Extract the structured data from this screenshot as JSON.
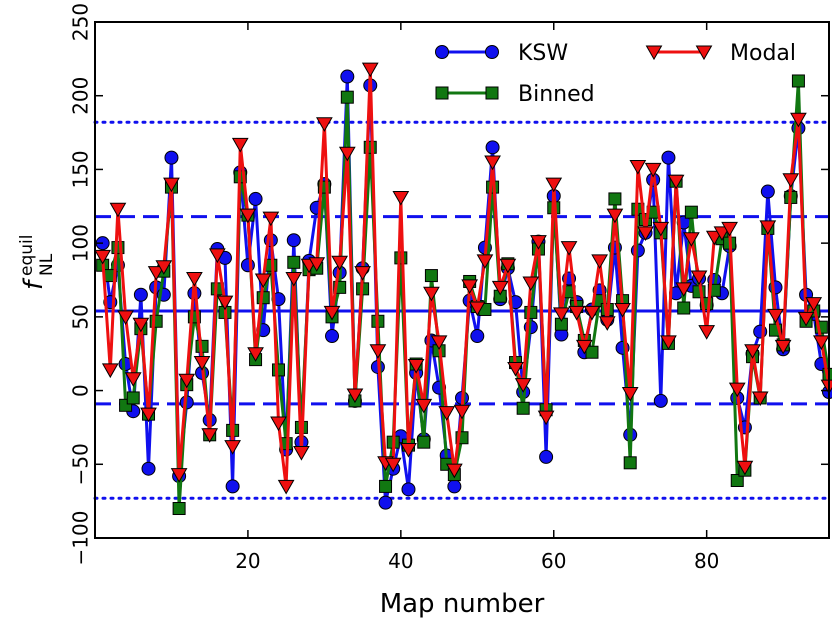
{
  "chart_data": {
    "type": "line",
    "xlabel": "Map number",
    "ylabel_main": "f",
    "ylabel_sup": "equil",
    "ylabel_sub": "NL",
    "xlim": [
      0,
      96
    ],
    "ylim": [
      -100,
      250
    ],
    "xticks": [
      20,
      40,
      60,
      80
    ],
    "yticks": [
      -100,
      -50,
      0,
      50,
      100,
      150,
      200,
      250
    ],
    "ytick_labels": [
      "−100",
      "−50",
      "0",
      "50",
      "100",
      "150",
      "200",
      "250"
    ],
    "hlines": [
      {
        "name": "mean",
        "y": 54,
        "style": "solid"
      },
      {
        "name": "plus-1sigma",
        "y": 118,
        "style": "dashed"
      },
      {
        "name": "minus-1sigma",
        "y": -9,
        "style": "dashed"
      },
      {
        "name": "plus-2sigma",
        "y": 182,
        "style": "dotted"
      },
      {
        "name": "minus-2sigma",
        "y": -73,
        "style": "dotted"
      }
    ],
    "legend": {
      "position": "top-right",
      "entries": [
        "KSW",
        "Binned",
        "Modal"
      ]
    },
    "series": [
      {
        "name": "KSW",
        "color": "#1010ee",
        "marker": "circle",
        "x": [
          1,
          2,
          3,
          4,
          5,
          6,
          7,
          8,
          9,
          10,
          11,
          12,
          13,
          14,
          15,
          16,
          17,
          18,
          19,
          20,
          21,
          22,
          23,
          24,
          25,
          26,
          27,
          28,
          29,
          30,
          31,
          32,
          33,
          34,
          35,
          36,
          37,
          38,
          39,
          40,
          41,
          42,
          43,
          44,
          45,
          46,
          47,
          48,
          49,
          50,
          51,
          52,
          53,
          54,
          55,
          56,
          57,
          58,
          59,
          60,
          61,
          62,
          63,
          64,
          65,
          66,
          67,
          68,
          69,
          70,
          71,
          72,
          73,
          74,
          75,
          76,
          77,
          78,
          79,
          80,
          81,
          82,
          83,
          84,
          85,
          86,
          87,
          88,
          89,
          90,
          91,
          92,
          93,
          94,
          95,
          96
        ],
        "y": [
          100,
          60,
          85,
          18,
          -14,
          65,
          -53,
          70,
          65,
          158,
          -58,
          -8,
          66,
          12,
          -20,
          96,
          90,
          -65,
          148,
          85,
          130,
          41,
          102,
          62,
          -40,
          102,
          -35,
          88,
          124,
          140,
          37,
          80,
          213,
          -7,
          83,
          207,
          16,
          -76,
          -53,
          -31,
          -67,
          12,
          -33,
          34,
          2,
          -44,
          -65,
          -5,
          61,
          37,
          97,
          165,
          62,
          83,
          60,
          -1,
          43,
          101,
          -45,
          132,
          38,
          76,
          60,
          26,
          55,
          68,
          48,
          97,
          29,
          -30,
          95,
          107,
          143,
          -7,
          158,
          66,
          114,
          71,
          76,
          58,
          75,
          66,
          98,
          -5,
          -25,
          25,
          40,
          135,
          70,
          28,
          132,
          178,
          65,
          52,
          18,
          -1
        ]
      },
      {
        "name": "Binned",
        "color": "#117711",
        "marker": "square",
        "x": [
          1,
          2,
          3,
          4,
          5,
          6,
          7,
          8,
          9,
          10,
          11,
          12,
          13,
          14,
          15,
          16,
          17,
          18,
          19,
          20,
          21,
          22,
          23,
          24,
          25,
          26,
          27,
          28,
          29,
          30,
          31,
          32,
          33,
          34,
          35,
          36,
          37,
          38,
          39,
          40,
          41,
          42,
          43,
          44,
          45,
          46,
          47,
          48,
          49,
          50,
          51,
          52,
          53,
          54,
          55,
          56,
          57,
          58,
          59,
          60,
          61,
          62,
          63,
          64,
          65,
          66,
          67,
          68,
          69,
          70,
          71,
          72,
          73,
          74,
          75,
          76,
          77,
          78,
          79,
          80,
          81,
          82,
          83,
          84,
          85,
          86,
          87,
          88,
          89,
          90,
          91,
          92,
          93,
          94,
          95,
          96
        ],
        "y": [
          85,
          78,
          97,
          -10,
          -5,
          42,
          -16,
          47,
          81,
          138,
          -80,
          4,
          50,
          30,
          -30,
          69,
          53,
          -27,
          145,
          119,
          21,
          63,
          85,
          14,
          -36,
          87,
          -25,
          82,
          83,
          138,
          50,
          70,
          199,
          -7,
          69,
          165,
          47,
          -65,
          -35,
          90,
          -37,
          18,
          -35,
          78,
          27,
          -50,
          -57,
          -32,
          74,
          57,
          55,
          138,
          64,
          86,
          19,
          -12,
          53,
          96,
          -13,
          124,
          45,
          67,
          57,
          34,
          26,
          61,
          55,
          130,
          61,
          -49,
          123,
          116,
          121,
          107,
          32,
          142,
          56,
          121,
          67,
          59,
          68,
          103,
          100,
          -61,
          -54,
          23,
          -5,
          110,
          41,
          31,
          131,
          210,
          47,
          54,
          43,
          11
        ]
      },
      {
        "name": "Modal",
        "color": "#ee1010",
        "marker": "triangle-down",
        "x": [
          1,
          2,
          3,
          4,
          5,
          6,
          7,
          8,
          9,
          10,
          11,
          12,
          13,
          14,
          15,
          16,
          17,
          18,
          19,
          20,
          21,
          22,
          23,
          24,
          25,
          26,
          27,
          28,
          29,
          30,
          31,
          32,
          33,
          34,
          35,
          36,
          37,
          38,
          39,
          40,
          41,
          42,
          43,
          44,
          45,
          46,
          47,
          48,
          49,
          50,
          51,
          52,
          53,
          54,
          55,
          56,
          57,
          58,
          59,
          60,
          61,
          62,
          63,
          64,
          65,
          66,
          67,
          68,
          69,
          70,
          71,
          72,
          73,
          74,
          75,
          76,
          77,
          78,
          79,
          80,
          81,
          82,
          83,
          84,
          85,
          86,
          87,
          88,
          89,
          90,
          91,
          92,
          93,
          94,
          95,
          96
        ],
        "y": [
          91,
          14,
          123,
          50,
          8,
          45,
          -16,
          80,
          84,
          140,
          -57,
          7,
          76,
          19,
          -30,
          92,
          60,
          -38,
          167,
          119,
          25,
          75,
          117,
          -22,
          -65,
          76,
          -42,
          85,
          86,
          181,
          53,
          87,
          161,
          -3,
          80,
          218,
          27,
          -49,
          -50,
          131,
          -40,
          17,
          -10,
          66,
          33,
          -15,
          -54,
          -14,
          71,
          56,
          88,
          155,
          70,
          85,
          15,
          4,
          73,
          101,
          -18,
          140,
          52,
          97,
          53,
          30,
          53,
          88,
          46,
          119,
          55,
          -2,
          152,
          107,
          150,
          110,
          33,
          142,
          69,
          103,
          77,
          40,
          104,
          107,
          110,
          1,
          -52,
          27,
          -5,
          111,
          51,
          30,
          143,
          184,
          49,
          59,
          33,
          3
        ]
      }
    ]
  }
}
